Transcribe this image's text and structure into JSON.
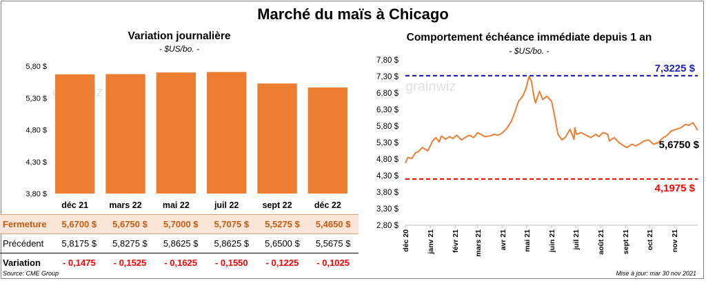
{
  "title": "Marché du maïs à Chicago",
  "source": "Source: CME Group",
  "update": "Mise à jour: mar 30 nov 2021",
  "watermark": "grainwiz",
  "colors": {
    "bar": "#ed7d31",
    "line": "#ed7d31",
    "high": "#1f1fb4",
    "low": "#ff0000"
  },
  "chart_data": [
    {
      "type": "bar",
      "title": "Variation journalière",
      "subtitle": "- $US/bo. -",
      "categories": [
        "déc 21",
        "mars 22",
        "mai 22",
        "juil 22",
        "sept 22",
        "déc 22"
      ],
      "values": [
        5.67,
        5.675,
        5.7,
        5.7075,
        5.5275,
        5.465
      ],
      "ylim": [
        3.8,
        5.8
      ],
      "yticks": [
        "5,80 $",
        "5,30 $",
        "4,80 $",
        "4,30 $",
        "3,80 $"
      ],
      "grid": false
    },
    {
      "type": "line",
      "title": "Comportement échéance immédiate depuis 1 an",
      "subtitle": "- $US/bo. -",
      "ylim": [
        2.8,
        7.8
      ],
      "yticks": [
        "7,80 $",
        "7,30 $",
        "6,80 $",
        "6,30 $",
        "5,80 $",
        "5,30 $",
        "4,80 $",
        "4,30 $",
        "3,80 $",
        "3,30 $",
        "2,80 $"
      ],
      "xticks": [
        "déc 20",
        "janv 21",
        "févr 21",
        "mars 21",
        "avr 21",
        "mai 21",
        "juin 21",
        "juil 21",
        "août 21",
        "sept 21",
        "oct 21",
        "nov 21"
      ],
      "series": [
        {
          "x": [
            "2020-12-01",
            "2020-12-04",
            "2020-12-09",
            "2020-12-14",
            "2020-12-17",
            "2020-12-22",
            "2020-12-29",
            "2021-01-04",
            "2021-01-08",
            "2021-01-12",
            "2021-01-15",
            "2021-01-20",
            "2021-01-25",
            "2021-01-29",
            "2021-02-03",
            "2021-02-09",
            "2021-02-15",
            "2021-02-19",
            "2021-02-24",
            "2021-03-01",
            "2021-03-05",
            "2021-03-10",
            "2021-03-16",
            "2021-03-22",
            "2021-03-26",
            "2021-03-31",
            "2021-04-06",
            "2021-04-12",
            "2021-04-16",
            "2021-04-21",
            "2021-04-26",
            "2021-04-30",
            "2021-05-04",
            "2021-05-07",
            "2021-05-10",
            "2021-05-12",
            "2021-05-17",
            "2021-05-21",
            "2021-05-26",
            "2021-06-01",
            "2021-06-04",
            "2021-06-09",
            "2021-06-14",
            "2021-06-18",
            "2021-06-24",
            "2021-06-29",
            "2021-06-30",
            "2021-07-02",
            "2021-07-08",
            "2021-07-14",
            "2021-07-20",
            "2021-07-26",
            "2021-07-30",
            "2021-08-04",
            "2021-08-10",
            "2021-08-12",
            "2021-08-18",
            "2021-08-24",
            "2021-08-30",
            "2021-09-03",
            "2021-09-09",
            "2021-09-14",
            "2021-09-20",
            "2021-09-24",
            "2021-09-30",
            "2021-10-06",
            "2021-10-12",
            "2021-10-18",
            "2021-10-22",
            "2021-10-28",
            "2021-11-03",
            "2021-11-09",
            "2021-11-15",
            "2021-11-19",
            "2021-11-24",
            "2021-11-30"
          ],
          "y": [
            4.68,
            4.85,
            4.82,
            5.0,
            5.02,
            5.15,
            5.05,
            5.35,
            5.45,
            5.32,
            5.5,
            5.4,
            5.48,
            5.42,
            5.52,
            5.38,
            5.48,
            5.52,
            5.45,
            5.6,
            5.55,
            5.48,
            5.5,
            5.55,
            5.52,
            5.58,
            5.72,
            5.95,
            6.2,
            6.55,
            6.7,
            6.92,
            7.3,
            7.15,
            6.7,
            6.5,
            6.85,
            6.6,
            6.7,
            6.55,
            6.2,
            5.55,
            5.38,
            5.45,
            5.7,
            5.4,
            5.75,
            5.55,
            5.6,
            5.52,
            5.45,
            5.55,
            5.48,
            5.6,
            5.55,
            5.35,
            5.45,
            5.3,
            5.2,
            5.15,
            5.25,
            5.2,
            5.28,
            5.35,
            5.38,
            5.25,
            5.3,
            5.45,
            5.5,
            5.65,
            5.7,
            5.75,
            5.85,
            5.82,
            5.9,
            5.675
          ]
        }
      ],
      "reference_lines": [
        {
          "value": 7.3225,
          "label": "7,3225 $"
        },
        {
          "value": 4.1975,
          "label": "4,1975 $"
        }
      ],
      "last_label": "5,6750 $"
    }
  ],
  "table": {
    "rows": [
      {
        "label": "Fermeture",
        "values": [
          "5,6700  $",
          "5,6750  $",
          "5,7000  $",
          "5,7075  $",
          "5,5275  $",
          "5,4650  $"
        ]
      },
      {
        "label": "Précédent",
        "values": [
          "5,8175  $",
          "5,8275  $",
          "5,8625  $",
          "5,8625  $",
          "5,6500  $",
          "5,5675  $"
        ]
      },
      {
        "label": "Variation",
        "values": [
          "- 0,1475",
          "- 0,1525",
          "- 0,1625",
          "- 0,1550",
          "- 0,1225",
          "- 0,1025"
        ]
      }
    ]
  }
}
